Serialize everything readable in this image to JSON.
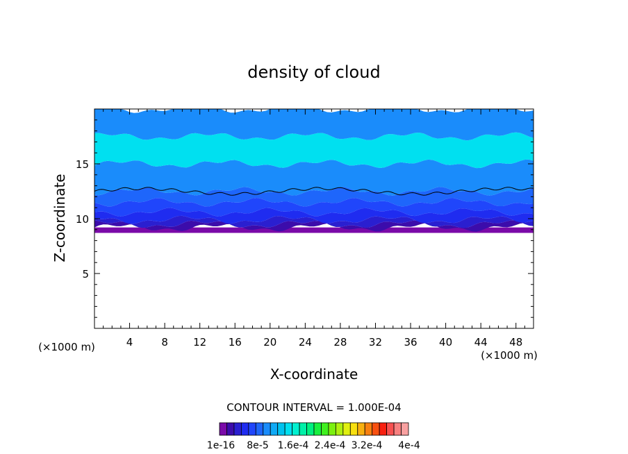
{
  "chart_data": {
    "type": "heatmap",
    "title": "density of cloud",
    "xlabel": "X-coordinate",
    "ylabel": "Z-coordinate",
    "x_unit_note": "(×1000 m)",
    "x_unit_note_right": "(×1000 m)",
    "xlim": [
      0,
      50
    ],
    "ylim": [
      0,
      20
    ],
    "x_ticks": [
      4,
      8,
      12,
      16,
      20,
      24,
      28,
      32,
      36,
      40,
      44,
      48
    ],
    "y_ticks": [
      5,
      10,
      15
    ],
    "contour_interval_text": "CONTOUR INTERVAL = 1.000E-04",
    "colorbar": {
      "labels": [
        "1e-16",
        "8e-5",
        "1.6e-4",
        "2.4e-4",
        "3.2e-4",
        "4e-4"
      ],
      "colors": [
        "#7a0aa8",
        "#3c0cab",
        "#2a1fd0",
        "#1f2cf0",
        "#2046fb",
        "#1e66fb",
        "#1a8cfb",
        "#10aaf5",
        "#00c2ee",
        "#00e0f0",
        "#00f0d0",
        "#00f0a8",
        "#00f080",
        "#18f040",
        "#40f020",
        "#7cf010",
        "#b0f010",
        "#e0f010",
        "#f8e010",
        "#f8b010",
        "#f88010",
        "#f85010",
        "#f82010",
        "#f85050",
        "#f88080",
        "#f8a0a0"
      ]
    },
    "layers": [
      {
        "z_bottom": 8.7,
        "z_top": 9.2,
        "color": "#7a0aa8"
      },
      {
        "z_bottom": 9.2,
        "z_top": 9.5,
        "color": "#3c0cab"
      },
      {
        "z_bottom": 9.5,
        "z_top": 9.9,
        "color": "#2a1fd0"
      },
      {
        "z_bottom": 9.9,
        "z_top": 10.6,
        "color": "#1f2cf0"
      },
      {
        "z_bottom": 10.6,
        "z_top": 11.5,
        "color": "#2046fb"
      },
      {
        "z_bottom": 11.5,
        "z_top": 12.5,
        "color": "#1e66fb"
      },
      {
        "z_bottom": 12.5,
        "z_top": 15.0,
        "color": "#1a8cfb"
      },
      {
        "z_bottom": 15.0,
        "z_top": 17.5,
        "color": "#00e0f0"
      },
      {
        "z_bottom": 17.5,
        "z_top": 20.0,
        "color": "#1a8cfb"
      }
    ],
    "contour_line_z": 12.5
  }
}
